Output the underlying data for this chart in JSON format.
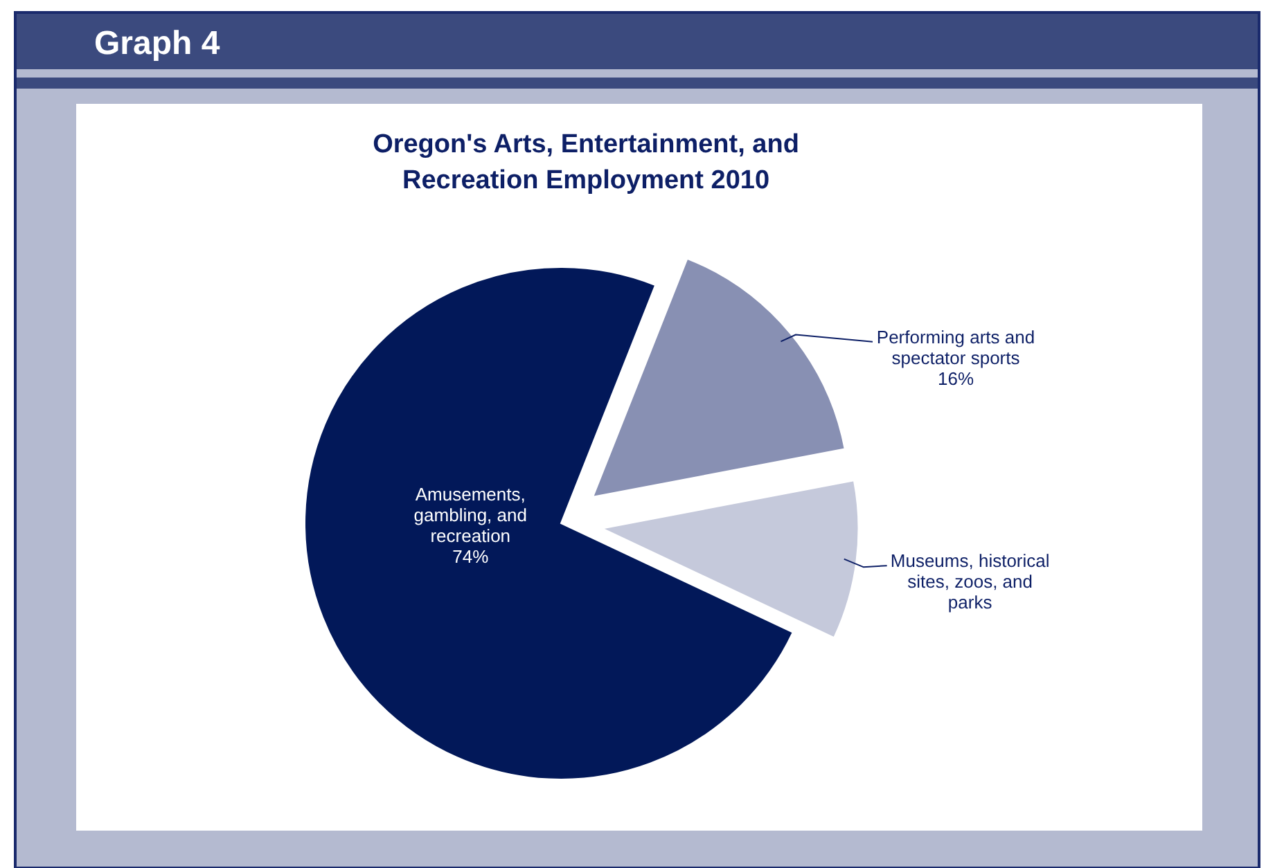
{
  "chart_data": {
    "type": "pie",
    "title": "Oregon's Arts, Entertainment, and Recreation Employment 2010",
    "annotations": [
      "Graph 4"
    ],
    "categories": [
      "Amusements, gambling, and recreation",
      "Performing arts and spectator sports",
      "Museums, historical sites, zoos, and parks"
    ],
    "values": [
      74,
      16,
      10
    ],
    "value_labels": [
      "74%",
      "16%",
      null
    ],
    "colors": [
      "#021859",
      "#8890b3",
      "#c5c9db"
    ]
  }
}
